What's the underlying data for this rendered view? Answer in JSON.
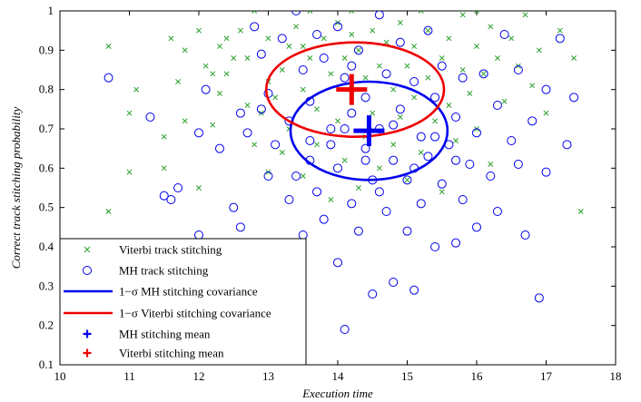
{
  "chart_data": {
    "type": "scatter",
    "xlabel": "Execution time",
    "ylabel": "Correct track stitching probability",
    "xlim": [
      10,
      18
    ],
    "ylim": [
      0.1,
      1
    ],
    "xticks": [
      "10",
      "11",
      "12",
      "13",
      "14",
      "15",
      "16",
      "17",
      "18"
    ],
    "yticks": [
      "0.1",
      "0.2",
      "0.3",
      "0.4",
      "0.5",
      "0.6",
      "0.7",
      "0.8",
      "0.9",
      "1"
    ],
    "grid": false,
    "legend_position": "bottom-left",
    "series": [
      {
        "name": "Viterbi track stitching",
        "marker": "x",
        "color": "#2ca02c",
        "points": [
          [
            10.7,
            0.91
          ],
          [
            10.7,
            0.49
          ],
          [
            11.0,
            0.59
          ],
          [
            11.0,
            0.74
          ],
          [
            11.1,
            0.8
          ],
          [
            11.5,
            0.6
          ],
          [
            11.5,
            0.68
          ],
          [
            11.6,
            0.93
          ],
          [
            11.7,
            0.82
          ],
          [
            11.8,
            0.9
          ],
          [
            11.8,
            0.72
          ],
          [
            12.0,
            0.95
          ],
          [
            12.0,
            0.55
          ],
          [
            12.1,
            0.86
          ],
          [
            12.2,
            0.84
          ],
          [
            12.2,
            0.71
          ],
          [
            12.3,
            0.79
          ],
          [
            12.3,
            0.91
          ],
          [
            12.4,
            0.84
          ],
          [
            12.5,
            0.88
          ],
          [
            12.6,
            0.95
          ],
          [
            12.7,
            0.76
          ],
          [
            12.7,
            0.88
          ],
          [
            12.8,
            1.0
          ],
          [
            12.8,
            0.66
          ],
          [
            12.9,
            0.74
          ],
          [
            13.0,
            0.82
          ],
          [
            13.0,
            0.59
          ],
          [
            13.0,
            0.93
          ],
          [
            13.1,
            0.78
          ],
          [
            13.2,
            0.85
          ],
          [
            13.2,
            0.64
          ],
          [
            13.3,
            0.91
          ],
          [
            13.3,
            0.7
          ],
          [
            13.4,
            0.96
          ],
          [
            13.5,
            0.8
          ],
          [
            13.5,
            0.58
          ],
          [
            13.6,
            0.88
          ],
          [
            13.6,
            1.0
          ],
          [
            13.7,
            0.66
          ],
          [
            13.7,
            0.75
          ],
          [
            13.8,
            0.93
          ],
          [
            13.9,
            0.84
          ],
          [
            13.9,
            0.52
          ],
          [
            14.0,
            0.97
          ],
          [
            14.0,
            0.72
          ],
          [
            14.1,
            0.88
          ],
          [
            14.1,
            0.62
          ],
          [
            14.2,
            1.0
          ],
          [
            14.2,
            0.77
          ],
          [
            14.3,
            0.9
          ],
          [
            14.3,
            0.55
          ],
          [
            14.4,
            0.83
          ],
          [
            14.4,
            0.68
          ],
          [
            14.5,
            0.95
          ],
          [
            14.5,
            0.74
          ],
          [
            14.6,
            0.86
          ],
          [
            14.6,
            0.6
          ],
          [
            14.7,
            0.92
          ],
          [
            14.8,
            0.8
          ],
          [
            14.8,
            0.66
          ],
          [
            14.9,
            0.97
          ],
          [
            14.9,
            0.73
          ],
          [
            15.0,
            0.86
          ],
          [
            15.0,
            0.57
          ],
          [
            15.1,
            0.91
          ],
          [
            15.1,
            0.78
          ],
          [
            15.2,
            0.64
          ],
          [
            15.3,
            0.95
          ],
          [
            15.3,
            0.83
          ],
          [
            15.4,
            0.72
          ],
          [
            15.5,
            0.88
          ],
          [
            15.5,
            0.54
          ],
          [
            15.6,
            0.93
          ],
          [
            15.6,
            0.76
          ],
          [
            15.7,
            0.67
          ],
          [
            15.8,
            0.85
          ],
          [
            15.8,
            0.99
          ],
          [
            15.9,
            0.79
          ],
          [
            16.0,
            0.91
          ],
          [
            16.0,
            0.7
          ],
          [
            16.1,
            0.84
          ],
          [
            16.2,
            0.96
          ],
          [
            16.2,
            0.61
          ],
          [
            16.3,
            0.88
          ],
          [
            16.4,
            0.77
          ],
          [
            16.5,
            0.93
          ],
          [
            16.6,
            0.86
          ],
          [
            16.7,
            0.99
          ],
          [
            16.8,
            0.81
          ],
          [
            16.9,
            0.9
          ],
          [
            17.0,
            0.74
          ],
          [
            17.2,
            0.95
          ],
          [
            17.4,
            0.88
          ],
          [
            17.5,
            0.49
          ],
          [
            12.4,
            0.93
          ],
          [
            13.5,
            0.91
          ],
          [
            14.2,
            0.94
          ],
          [
            15.2,
            1.0
          ],
          [
            16.0,
            1.0
          ]
        ]
      },
      {
        "name": "MH track stitching",
        "marker": "o",
        "color": "#0000ee",
        "points": [
          [
            10.7,
            0.83
          ],
          [
            11.3,
            0.73
          ],
          [
            11.5,
            0.53
          ],
          [
            11.6,
            0.52
          ],
          [
            11.7,
            0.55
          ],
          [
            12.0,
            0.69
          ],
          [
            12.0,
            0.43
          ],
          [
            12.1,
            0.8
          ],
          [
            12.3,
            0.65
          ],
          [
            12.5,
            0.5
          ],
          [
            12.6,
            0.45
          ],
          [
            12.6,
            0.74
          ],
          [
            12.7,
            0.69
          ],
          [
            12.8,
            0.96
          ],
          [
            12.9,
            0.89
          ],
          [
            13.0,
            0.58
          ],
          [
            13.0,
            0.79
          ],
          [
            13.1,
            0.66
          ],
          [
            13.2,
            0.93
          ],
          [
            13.3,
            0.52
          ],
          [
            13.3,
            0.72
          ],
          [
            13.4,
            1.0
          ],
          [
            13.5,
            0.85
          ],
          [
            13.5,
            0.43
          ],
          [
            13.6,
            0.62
          ],
          [
            13.6,
            0.77
          ],
          [
            13.7,
            0.94
          ],
          [
            13.7,
            0.54
          ],
          [
            13.8,
            0.88
          ],
          [
            13.8,
            0.47
          ],
          [
            13.9,
            0.7
          ],
          [
            13.9,
            0.66
          ],
          [
            14.0,
            0.96
          ],
          [
            14.0,
            0.6
          ],
          [
            14.0,
            0.36
          ],
          [
            14.1,
            0.19
          ],
          [
            14.1,
            0.83
          ],
          [
            14.2,
            0.74
          ],
          [
            14.2,
            0.51
          ],
          [
            14.3,
            0.9
          ],
          [
            14.3,
            0.44
          ],
          [
            14.4,
            0.65
          ],
          [
            14.4,
            0.78
          ],
          [
            14.5,
            0.28
          ],
          [
            14.5,
            0.57
          ],
          [
            14.6,
            0.99
          ],
          [
            14.6,
            0.7
          ],
          [
            14.7,
            0.84
          ],
          [
            14.7,
            0.49
          ],
          [
            14.8,
            0.62
          ],
          [
            14.8,
            0.31
          ],
          [
            14.9,
            0.92
          ],
          [
            14.9,
            0.75
          ],
          [
            15.0,
            0.57
          ],
          [
            15.0,
            0.44
          ],
          [
            15.1,
            0.29
          ],
          [
            15.1,
            0.82
          ],
          [
            15.2,
            0.68
          ],
          [
            15.2,
            0.51
          ],
          [
            15.3,
            0.95
          ],
          [
            15.3,
            0.63
          ],
          [
            15.4,
            0.4
          ],
          [
            15.4,
            0.78
          ],
          [
            15.5,
            0.56
          ],
          [
            15.5,
            0.86
          ],
          [
            15.6,
            0.66
          ],
          [
            15.7,
            0.41
          ],
          [
            15.7,
            0.73
          ],
          [
            15.8,
            0.83
          ],
          [
            15.8,
            0.52
          ],
          [
            15.9,
            0.61
          ],
          [
            16.0,
            0.69
          ],
          [
            16.0,
            0.45
          ],
          [
            16.1,
            0.84
          ],
          [
            16.2,
            0.58
          ],
          [
            16.3,
            0.49
          ],
          [
            16.3,
            0.76
          ],
          [
            16.4,
            0.94
          ],
          [
            16.5,
            0.67
          ],
          [
            16.6,
            0.61
          ],
          [
            16.6,
            0.85
          ],
          [
            16.7,
            0.43
          ],
          [
            16.8,
            0.72
          ],
          [
            16.9,
            0.27
          ],
          [
            17.0,
            0.59
          ],
          [
            17.0,
            0.8
          ],
          [
            17.2,
            0.93
          ],
          [
            17.3,
            0.66
          ],
          [
            17.4,
            0.78
          ],
          [
            12.9,
            0.75
          ],
          [
            13.6,
            0.67
          ],
          [
            14.1,
            0.7
          ],
          [
            14.4,
            0.62
          ],
          [
            14.8,
            0.71
          ],
          [
            15.1,
            0.6
          ],
          [
            15.4,
            0.68
          ],
          [
            13.4,
            0.58
          ],
          [
            14.6,
            0.54
          ],
          [
            15.7,
            0.62
          ],
          [
            14.2,
            0.86
          ]
        ]
      },
      {
        "name": "1−σ MH stitching covariance",
        "type": "ellipse",
        "color": "#0000ee",
        "center": [
          14.45,
          0.695
        ],
        "semi_axes": [
          1.13,
          0.125
        ]
      },
      {
        "name": "1−σ Viterbi stitching covariance",
        "type": "ellipse",
        "color": "#ee0000",
        "center": [
          14.25,
          0.8
        ],
        "semi_axes": [
          1.28,
          0.12
        ]
      },
      {
        "name": "MH stitching mean",
        "marker": "+",
        "color": "#0000ee",
        "points": [
          [
            14.45,
            0.695
          ]
        ]
      },
      {
        "name": "Viterbi stitching mean",
        "marker": "+",
        "color": "#ee0000",
        "points": [
          [
            14.2,
            0.8
          ]
        ]
      }
    ]
  }
}
